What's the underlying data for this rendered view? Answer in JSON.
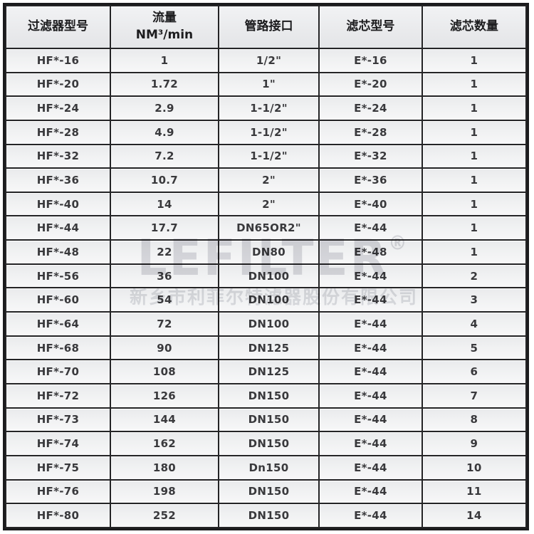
{
  "table": {
    "columns": [
      {
        "id": "filter-model",
        "label": "过滤器型号"
      },
      {
        "id": "flow-rate",
        "label": "流量\nNM³/min"
      },
      {
        "id": "pipe-connection",
        "label": "管路接口"
      },
      {
        "id": "element-model",
        "label": "滤芯型号"
      },
      {
        "id": "element-quantity",
        "label": "滤芯数量"
      }
    ],
    "rows": [
      [
        "HF*-16",
        "1",
        "1/2\"",
        "E*-16",
        "1"
      ],
      [
        "HF*-20",
        "1.72",
        "1\"",
        "E*-20",
        "1"
      ],
      [
        "HF*-24",
        "2.9",
        "1-1/2\"",
        "E*-24",
        "1"
      ],
      [
        "HF*-28",
        "4.9",
        "1-1/2\"",
        "E*-28",
        "1"
      ],
      [
        "HF*-32",
        "7.2",
        "1-1/2\"",
        "E*-32",
        "1"
      ],
      [
        "HF*-36",
        "10.7",
        "2\"",
        "E*-36",
        "1"
      ],
      [
        "HF*-40",
        "14",
        "2\"",
        "E*-40",
        "1"
      ],
      [
        "HF*-44",
        "17.7",
        "DN65OR2\"",
        "E*-44",
        "1"
      ],
      [
        "HF*-48",
        "22",
        "DN80",
        "E*-48",
        "1"
      ],
      [
        "HF*-56",
        "36",
        "DN100",
        "E*-44",
        "2"
      ],
      [
        "HF*-60",
        "54",
        "DN100",
        "E*-44",
        "3"
      ],
      [
        "HF*-64",
        "72",
        "DN100",
        "E*-44",
        "4"
      ],
      [
        "HF*-68",
        "90",
        "DN125",
        "E*-44",
        "5"
      ],
      [
        "HF*-70",
        "108",
        "DN125",
        "E*-44",
        "6"
      ],
      [
        "HF*-72",
        "126",
        "DN150",
        "E*-44",
        "7"
      ],
      [
        "HF*-73",
        "144",
        "DN150",
        "E*-44",
        "8"
      ],
      [
        "HF*-74",
        "162",
        "DN150",
        "E*-44",
        "9"
      ],
      [
        "HF*-75",
        "180",
        "Dn150",
        "E*-44",
        "10"
      ],
      [
        "HF*-76",
        "198",
        "DN150",
        "E*-44",
        "11"
      ],
      [
        "HF*-80",
        "252",
        "DN150",
        "E*-44",
        "14"
      ]
    ]
  },
  "watermark": {
    "brand": "LEFILTER",
    "registered_mark": "®",
    "company": "新乡市利菲尔特滤器股份有限公司"
  },
  "colors": {
    "outer_border": "#1b1b1d",
    "grid_border": "#242426",
    "header_text": "#1c1c1e",
    "cell_text": "#39393c",
    "cell_background": "#eceef0",
    "watermark": "#c3c4ca",
    "page_background": "#ffffff"
  }
}
